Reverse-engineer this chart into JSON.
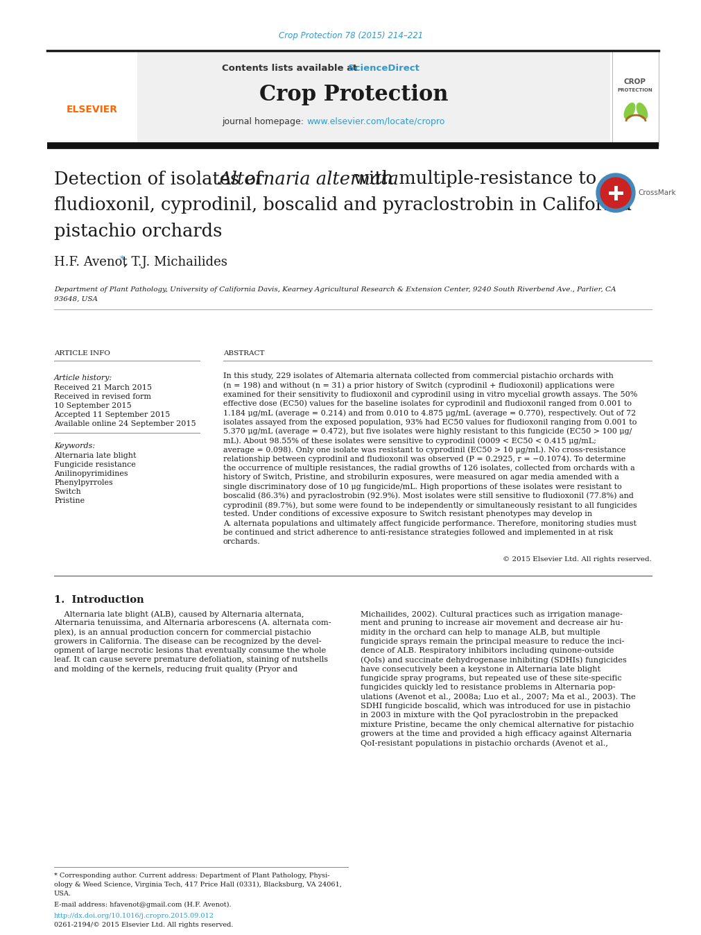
{
  "journal_ref": "Crop Protection 78 (2015) 214–221",
  "journal_ref_color": "#3399cc",
  "contents_text": "Contents lists available at ",
  "sciencedirect_text": "ScienceDirect",
  "sciencedirect_color": "#3399cc",
  "journal_name": "Crop Protection",
  "journal_homepage_prefix": "journal homepage: ",
  "journal_homepage_url": "www.elsevier.com/locate/cropro",
  "journal_homepage_color": "#3399cc",
  "header_bg_color": "#f0f0f0",
  "thick_line_color": "#1a1a1a",
  "authors": "H.F. Avenot",
  "authors_rest": ", T.J. Michailides",
  "aff_line1": "Department of Plant Pathology, University of California Davis, Kearney Agricultural Research & Extension Center, 9240 South Riverbend Ave., Parlier, CA",
  "aff_line2": "93648, USA",
  "article_info_header": "ARTICLE INFO",
  "abstract_header": "ABSTRACT",
  "copyright": "© 2015 Elsevier Ltd. All rights reserved.",
  "section1_header": "1.  Introduction",
  "keywords": [
    "Alternaria late blight",
    "Fungicide resistance",
    "Anilinopyrimidines",
    "Phenylpyrroles",
    "Switch",
    "Pristine"
  ],
  "abstract_lines": [
    "In this study, 229 isolates of Altemaria alternata collected from commercial pistachio orchards with",
    "(n = 198) and without (n = 31) a prior history of Switch (cyprodinil + fludioxonil) applications were",
    "examined for their sensitivity to fludioxonil and cyprodinil using in vitro mycelial growth assays. The 50%",
    "effective dose (EC50) values for the baseline isolates for cyprodinil and fludioxonil ranged from 0.001 to",
    "1.184 μg/mL (average = 0.214) and from 0.010 to 4.875 μg/mL (average = 0.770), respectively. Out of 72",
    "isolates assayed from the exposed population, 93% had EC50 values for fludioxonil ranging from 0.001 to",
    "5.370 μg/mL (average = 0.472), but five isolates were highly resistant to this fungicide (EC50 > 100 μg/",
    "mL). About 98.55% of these isolates were sensitive to cyprodinil (0009 < EC50 < 0.415 μg/mL;",
    "average = 0.098). Only one isolate was resistant to cyprodinil (EC50 > 10 μg/mL). No cross-resistance",
    "relationship between cyprodinil and fludioxonil was observed (P = 0.2925, r = −0.1074). To determine",
    "the occurrence of multiple resistances, the radial growths of 126 isolates, collected from orchards with a",
    "history of Switch, Pristine, and strobilurin exposures, were measured on agar media amended with a",
    "single discriminatory dose of 10 μg fungicide/mL. High proportions of these isolates were resistant to",
    "boscalid (86.3%) and pyraclostrobin (92.9%). Most isolates were still sensitive to fludioxonil (77.8%) and",
    "cyprodinil (89.7%), but some were found to be independently or simultaneously resistant to all fungicides",
    "tested. Under conditions of excessive exposure to Switch resistant phenotypes may develop in",
    "A. alternata populations and ultimately affect fungicide performance. Therefore, monitoring studies must",
    "be continued and strict adherence to anti-resistance strategies followed and implemented in at risk",
    "orchards."
  ],
  "intro_col1_lines": [
    "    Alternaria late blight (ALB), caused by Alternaria alternata,",
    "Alternaria tenuissima, and Alternaria arborescens (A. alternata com-",
    "plex), is an annual production concern for commercial pistachio",
    "growers in California. The disease can be recognized by the devel-",
    "opment of large necrotic lesions that eventually consume the whole",
    "leaf. It can cause severe premature defoliation, staining of nutshells",
    "and molding of the kernels, reducing fruit quality (Pryor and"
  ],
  "intro_col2_lines": [
    "Michailides, 2002). Cultural practices such as irrigation manage-",
    "ment and pruning to increase air movement and decrease air hu-",
    "midity in the orchard can help to manage ALB, but multiple",
    "fungicide sprays remain the principal measure to reduce the inci-",
    "dence of ALB. Respiratory inhibitors including quinone-outside",
    "(QoIs) and succinate dehydrogenase inhibiting (SDHIs) fungicides",
    "have consecutively been a keystone in Alternaria late blight",
    "fungicide spray programs, but repeated use of these site-specific",
    "fungicides quickly led to resistance problems in Alternaria pop-",
    "ulations (Avenot et al., 2008a; Luo et al., 2007; Ma et al., 2003). The",
    "SDHI fungicide boscalid, which was introduced for use in pistachio",
    "in 2003 in mixture with the QoI pyraclostrobin in the prepacked",
    "mixture Pristine, became the only chemical alternative for pistachio",
    "growers at the time and provided a high efficacy against Alternaria",
    "QoI-resistant populations in pistachio orchards (Avenot et al.,"
  ],
  "footnote_lines": [
    "* Corresponding author. Current address: Department of Plant Pathology, Physi-",
    "ology & Weed Science, Virginia Tech, 417 Price Hall (0331), Blacksburg, VA 24061,",
    "USA."
  ],
  "footnote_email": "E-mail address: hfavenot@gmail.com (H.F. Avenot).",
  "footnote_doi": "http://dx.doi.org/10.1016/j.cropro.2015.09.012",
  "footnote_issn": "0261-2194/© 2015 Elsevier Ltd. All rights reserved.",
  "bg_color": "#ffffff",
  "text_color": "#1a1a1a"
}
